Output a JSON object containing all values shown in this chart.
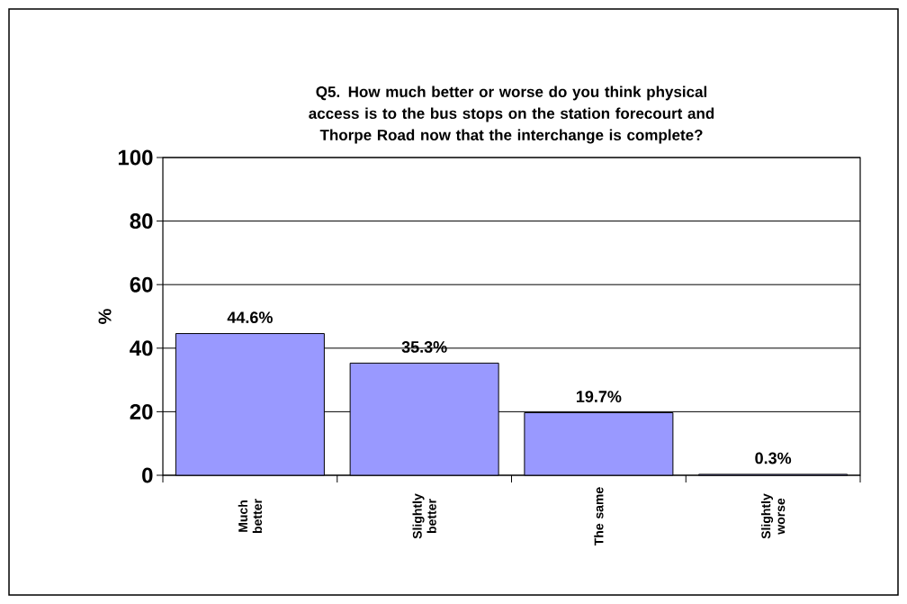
{
  "chart_data": {
    "type": "bar",
    "title": "Q5. How much better or worse do you think physical access is to the bus stops on the station forecourt and Thorpe Road now that the interchange is complete?",
    "ylabel": "%",
    "categories": [
      "Much better",
      "Slightly better",
      "The same",
      "Slightly worse"
    ],
    "values": [
      44.6,
      35.3,
      19.7,
      0.3
    ],
    "value_labels": [
      "44.6%",
      "35.3%",
      "19.7%",
      "0.3%"
    ],
    "color": "#9999ff",
    "ylim": [
      0,
      100
    ],
    "yticks": [
      0,
      20,
      40,
      60,
      80,
      100
    ],
    "grid": "y"
  }
}
